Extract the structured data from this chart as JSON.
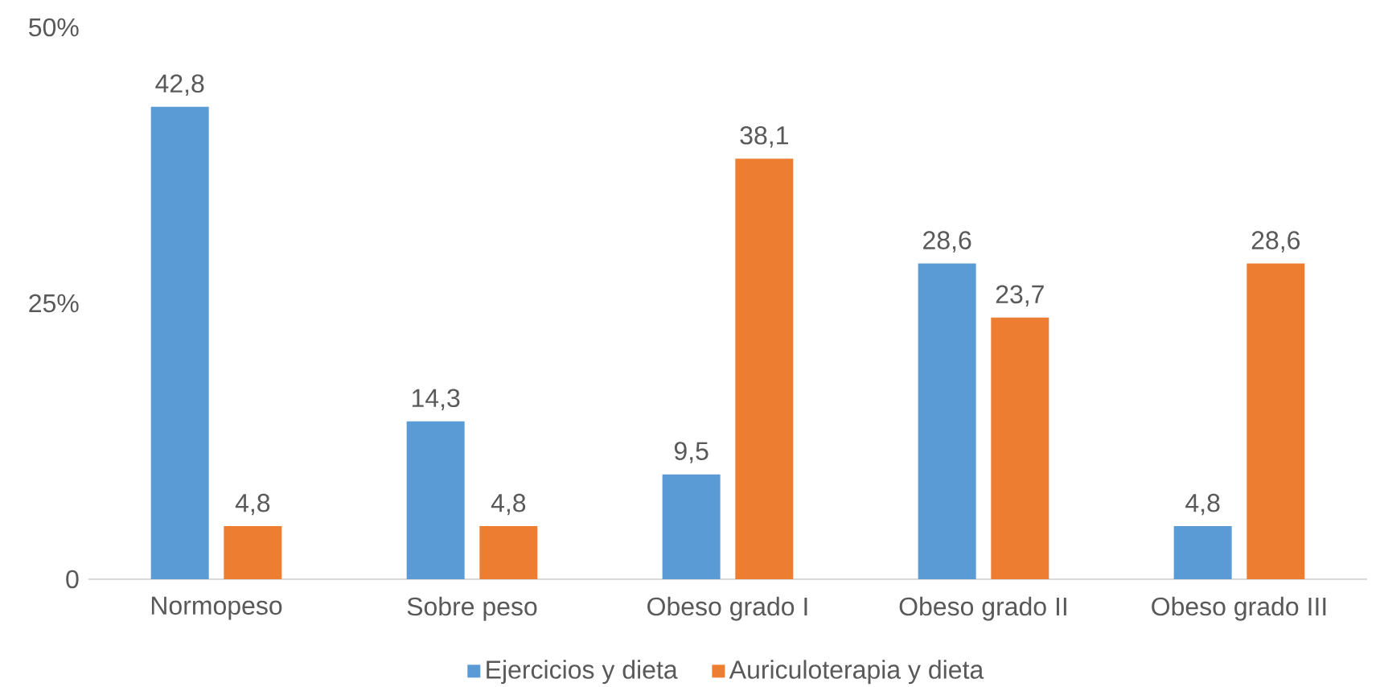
{
  "chart_data": {
    "type": "bar",
    "categories": [
      "Normopeso",
      "Sobre peso",
      "Obeso grado I",
      "Obeso grado II",
      "Obeso grado III"
    ],
    "series": [
      {
        "name": "Ejercicios y dieta",
        "color": "#5b9bd5",
        "values": [
          42.8,
          14.3,
          9.5,
          28.6,
          4.8
        ],
        "value_labels": [
          "42,8",
          "14,3",
          "9,5",
          "28,6",
          "4,8"
        ]
      },
      {
        "name": "Auriculoterapia y dieta",
        "color": "#ed7d31",
        "values": [
          4.8,
          4.8,
          38.1,
          23.7,
          28.6
        ],
        "value_labels": [
          "4,8",
          "4,8",
          "38,1",
          "23,7",
          "28,6"
        ]
      }
    ],
    "ylim": [
      0,
      50
    ],
    "yticks": [
      0,
      {
        "value": 25,
        "label": "25%"
      },
      {
        "value": 50,
        "label": "50%"
      }
    ],
    "grid": false,
    "legend": "bottom"
  }
}
